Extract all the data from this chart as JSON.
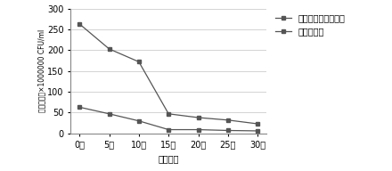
{
  "x_labels": [
    "0天",
    "5天",
    "10天",
    "15天",
    "20天",
    "25天",
    "30天"
  ],
  "x_values": [
    0,
    5,
    10,
    15,
    20,
    25,
    30
  ],
  "series1_name": "生物保护菌种发酵奶",
  "series2_name": "普通发酵奶",
  "series1_values": [
    263,
    203,
    172,
    47,
    38,
    32,
    23
  ],
  "series2_values": [
    63,
    47,
    30,
    9,
    9,
    7,
    6
  ],
  "ylabel": "乳酸菌菌数×1000000 CFU/ml",
  "xlabel": "储存时间",
  "ylim": [
    0,
    300
  ],
  "yticks": [
    0,
    50,
    100,
    150,
    200,
    250,
    300
  ],
  "line_color": "#555555",
  "marker": "s",
  "background_color": "#ffffff",
  "grid_color": "#cccccc",
  "tick_fontsize": 7,
  "label_fontsize": 7,
  "legend_fontsize": 7
}
